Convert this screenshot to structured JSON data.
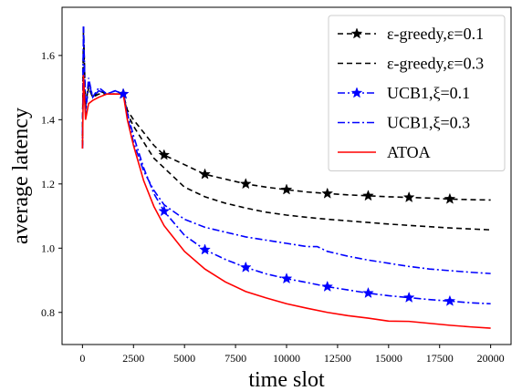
{
  "chart_data": {
    "type": "line",
    "title": "",
    "xlabel": "time slot",
    "ylabel": "average latency",
    "xlim": [
      -1000,
      21000
    ],
    "ylim": [
      0.7,
      1.75
    ],
    "xticks": [
      0,
      2500,
      5000,
      7500,
      10000,
      12500,
      15000,
      17500,
      20000
    ],
    "xtick_labels": [
      "0",
      "2500",
      "5000",
      "7500",
      "10000",
      "12500",
      "15000",
      "17500",
      "20000"
    ],
    "yticks": [
      0.8,
      1.0,
      1.2,
      1.4,
      1.6
    ],
    "ytick_labels": [
      "0.8",
      "1.0",
      "1.2",
      "1.4",
      "1.6"
    ],
    "grid": false,
    "legend_position": "top-right",
    "series": [
      {
        "name": "ε-greedy,ε=0.1",
        "color": "#000000",
        "dash": "6,4",
        "marker": "star",
        "marker_x": [
          2000,
          4000,
          6000,
          8000,
          10000,
          12000,
          14000,
          16000,
          18000
        ],
        "x": [
          0,
          50,
          150,
          300,
          500,
          800,
          1200,
          1600,
          2000,
          2200,
          2500,
          3000,
          3500,
          4000,
          5000,
          6000,
          7000,
          8000,
          9000,
          10000,
          11000,
          12000,
          13000,
          14000,
          15000,
          16000,
          17000,
          18000,
          19000,
          20000
        ],
        "values": [
          1.32,
          1.69,
          1.44,
          1.51,
          1.47,
          1.49,
          1.48,
          1.48,
          1.48,
          1.43,
          1.4,
          1.36,
          1.32,
          1.29,
          1.26,
          1.23,
          1.215,
          1.2,
          1.19,
          1.182,
          1.175,
          1.17,
          1.166,
          1.163,
          1.16,
          1.158,
          1.156,
          1.153,
          1.151,
          1.15
        ]
      },
      {
        "name": "ε-greedy,ε=0.3",
        "color": "#000000",
        "dash": "6,4",
        "marker": "none",
        "x": [
          0,
          50,
          150,
          300,
          500,
          800,
          1200,
          1600,
          2000,
          2200,
          2500,
          3000,
          3500,
          4000,
          5000,
          6000,
          7000,
          8000,
          9000,
          10000,
          11000,
          12000,
          13000,
          14000,
          15000,
          16000,
          17000,
          18000,
          19000,
          20000
        ],
        "values": [
          1.32,
          1.66,
          1.43,
          1.5,
          1.47,
          1.48,
          1.48,
          1.48,
          1.48,
          1.42,
          1.38,
          1.33,
          1.28,
          1.25,
          1.19,
          1.16,
          1.14,
          1.125,
          1.112,
          1.103,
          1.096,
          1.09,
          1.085,
          1.08,
          1.075,
          1.071,
          1.067,
          1.063,
          1.06,
          1.057
        ]
      },
      {
        "name": "UCB1,ξ=0.1",
        "color": "#0000ff",
        "dash": "8,3,2,3",
        "marker": "star",
        "marker_x": [
          2000,
          4000,
          6000,
          8000,
          10000,
          12000,
          14000,
          16000,
          18000
        ],
        "x": [
          0,
          50,
          150,
          300,
          500,
          800,
          1200,
          1600,
          2000,
          2200,
          2500,
          3000,
          3500,
          4000,
          5000,
          6000,
          7000,
          8000,
          9000,
          10000,
          11000,
          12000,
          13000,
          14000,
          15000,
          16000,
          17000,
          18000,
          19000,
          20000
        ],
        "values": [
          1.31,
          1.69,
          1.42,
          1.53,
          1.47,
          1.5,
          1.48,
          1.49,
          1.48,
          1.42,
          1.35,
          1.25,
          1.17,
          1.115,
          1.04,
          0.995,
          0.965,
          0.94,
          0.92,
          0.905,
          0.893,
          0.88,
          0.87,
          0.86,
          0.852,
          0.846,
          0.84,
          0.835,
          0.83,
          0.827
        ]
      },
      {
        "name": "UCB1,ξ=0.3",
        "color": "#0000ff",
        "dash": "8,3,2,3",
        "marker": "none",
        "x": [
          0,
          50,
          150,
          300,
          500,
          800,
          1200,
          1600,
          2000,
          2200,
          2500,
          3000,
          3500,
          4000,
          5000,
          6000,
          7000,
          8000,
          9000,
          10000,
          11000,
          11500,
          12000,
          13000,
          14000,
          15000,
          16000,
          17000,
          18000,
          19000,
          20000
        ],
        "values": [
          1.31,
          1.69,
          1.42,
          1.52,
          1.47,
          1.49,
          1.48,
          1.49,
          1.48,
          1.41,
          1.33,
          1.24,
          1.18,
          1.135,
          1.09,
          1.065,
          1.05,
          1.035,
          1.025,
          1.015,
          1.005,
          1.005,
          0.99,
          0.975,
          0.963,
          0.953,
          0.943,
          0.935,
          0.93,
          0.925,
          0.921
        ]
      },
      {
        "name": "ATOA",
        "color": "#ff0000",
        "dash": "",
        "marker": "none",
        "x": [
          0,
          50,
          150,
          300,
          500,
          800,
          1200,
          1600,
          2000,
          2200,
          2500,
          3000,
          3500,
          4000,
          5000,
          6000,
          7000,
          8000,
          9000,
          10000,
          11000,
          12000,
          13000,
          14000,
          15000,
          16000,
          17000,
          18000,
          19000,
          20000
        ],
        "values": [
          1.31,
          1.54,
          1.4,
          1.45,
          1.46,
          1.47,
          1.48,
          1.48,
          1.48,
          1.4,
          1.32,
          1.21,
          1.13,
          1.07,
          0.99,
          0.935,
          0.895,
          0.865,
          0.845,
          0.827,
          0.813,
          0.8,
          0.79,
          0.782,
          0.773,
          0.772,
          0.766,
          0.76,
          0.755,
          0.751
        ]
      }
    ]
  }
}
